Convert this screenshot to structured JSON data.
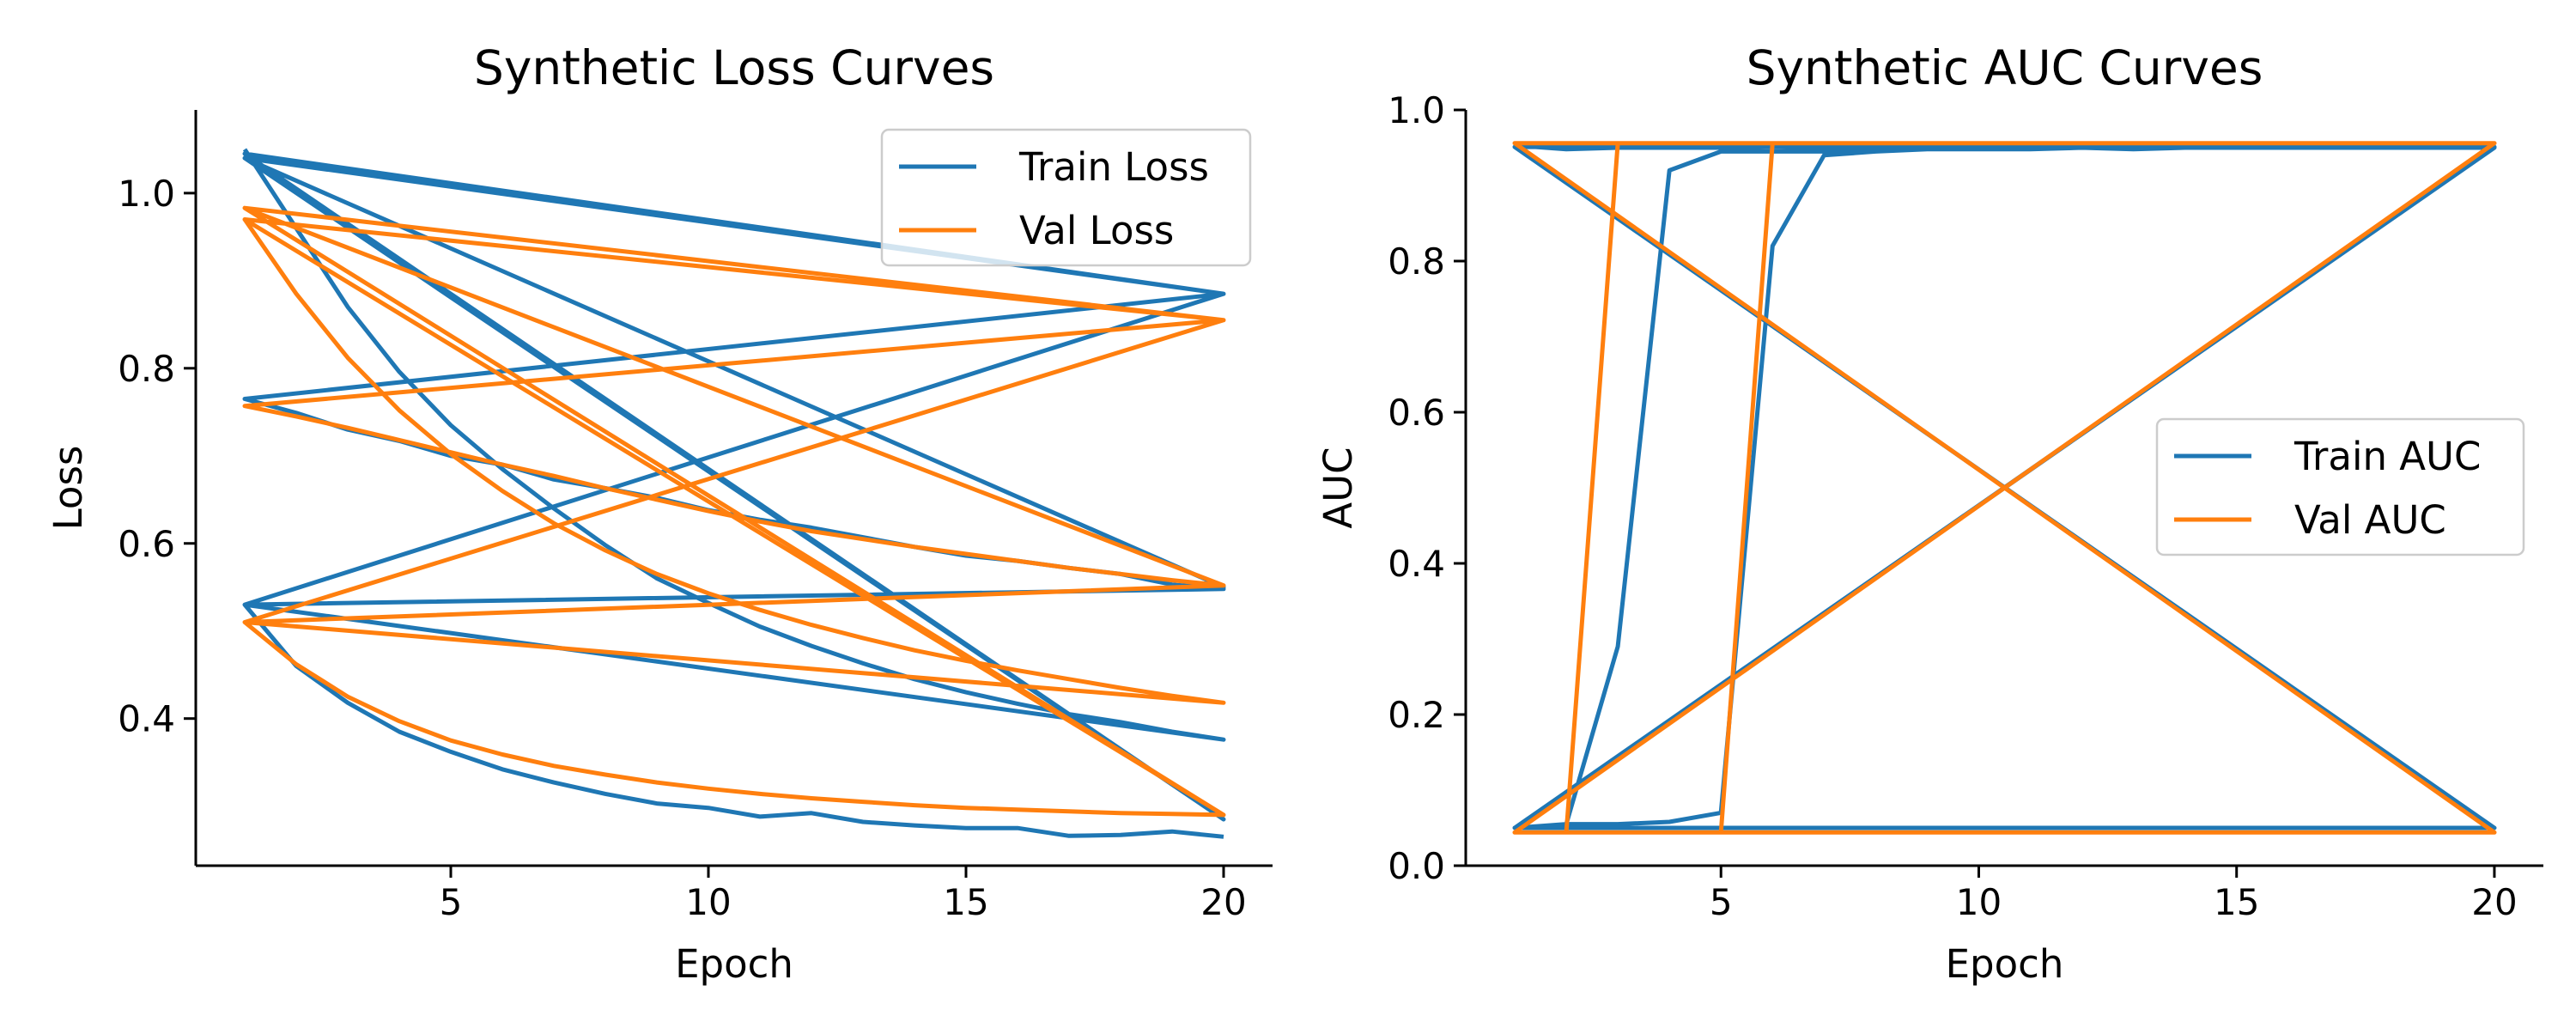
{
  "chart_data": [
    {
      "type": "line",
      "title": "Synthetic Loss Curves",
      "xlabel": "Epoch",
      "ylabel": "Loss",
      "xlim": [
        0.05,
        20.95
      ],
      "ylim": [
        0.232,
        1.095
      ],
      "xticks": [
        5,
        10,
        15,
        20
      ],
      "yticks": [
        0.4,
        0.6,
        0.8,
        1.0
      ],
      "xtick_labels": [
        "5",
        "10",
        "15",
        "20"
      ],
      "ytick_labels": [
        "0.4",
        "0.6",
        "0.8",
        "1.0"
      ],
      "grid": false,
      "legend": {
        "position": "top-right"
      },
      "colors": {
        "train": "#1f77b4",
        "val": "#ff7f0e"
      },
      "series": [
        {
          "name": "Train Loss",
          "color": "#1f77b4",
          "x": [
            1,
            2,
            3,
            4,
            5,
            6,
            7,
            8,
            9,
            10,
            11,
            12,
            13,
            14,
            15,
            16,
            17,
            18,
            19,
            20,
            1,
            20,
            1,
            20,
            1,
            20,
            1,
            20,
            1,
            2,
            3,
            4,
            5,
            6,
            7,
            8,
            9,
            10,
            11,
            12,
            13,
            14,
            15,
            16,
            17,
            18,
            19,
            20,
            1,
            2,
            3,
            4,
            5,
            6,
            7,
            8,
            9,
            10,
            11,
            12,
            13,
            14,
            15,
            16,
            17,
            18,
            19,
            20
          ],
          "y": [
            1.05,
            0.96,
            0.87,
            0.796,
            0.735,
            0.685,
            0.64,
            0.598,
            0.56,
            0.532,
            0.505,
            0.483,
            0.463,
            0.445,
            0.43,
            0.417,
            0.405,
            0.396,
            0.385,
            0.376,
            0.53,
            0.885,
            1.045,
            0.285,
            1.04,
            0.55,
            1.04,
            0.885,
            0.765,
            0.749,
            0.73,
            0.717,
            0.7,
            0.69,
            0.673,
            0.663,
            0.652,
            0.638,
            0.627,
            0.618,
            0.607,
            0.596,
            0.586,
            0.58,
            0.572,
            0.565,
            0.553,
            0.548,
            0.53,
            0.46,
            0.418,
            0.385,
            0.362,
            0.342,
            0.327,
            0.314,
            0.303,
            0.298,
            0.288,
            0.292,
            0.282,
            0.278,
            0.275,
            0.275,
            0.266,
            0.267,
            0.271,
            0.265
          ]
        },
        {
          "name": "Val Loss",
          "color": "#ff7f0e",
          "x": [
            1,
            2,
            3,
            4,
            5,
            6,
            7,
            8,
            9,
            10,
            11,
            12,
            13,
            14,
            15,
            16,
            17,
            18,
            19,
            20,
            1,
            20,
            1,
            20,
            1,
            20,
            1,
            20,
            1,
            2,
            3,
            4,
            5,
            6,
            7,
            8,
            9,
            10,
            11,
            12,
            13,
            14,
            15,
            16,
            17,
            18,
            19,
            20,
            1,
            2,
            3,
            4,
            5,
            6,
            7,
            8,
            9,
            10,
            11,
            12,
            13,
            14,
            15,
            16,
            17,
            18,
            19,
            20
          ],
          "y": [
            0.97,
            0.885,
            0.812,
            0.752,
            0.702,
            0.66,
            0.623,
            0.592,
            0.565,
            0.543,
            0.524,
            0.507,
            0.492,
            0.478,
            0.466,
            0.455,
            0.445,
            0.435,
            0.426,
            0.418,
            0.51,
            0.855,
            0.97,
            0.29,
            0.983,
            0.552,
            0.983,
            0.855,
            0.757,
            0.745,
            0.732,
            0.718,
            0.704,
            0.69,
            0.677,
            0.663,
            0.65,
            0.637,
            0.625,
            0.614,
            0.605,
            0.596,
            0.588,
            0.58,
            0.572,
            0.565,
            0.558,
            0.552,
            0.51,
            0.462,
            0.425,
            0.397,
            0.375,
            0.359,
            0.346,
            0.336,
            0.327,
            0.32,
            0.314,
            0.309,
            0.305,
            0.301,
            0.298,
            0.296,
            0.294,
            0.292,
            0.291,
            0.29
          ]
        }
      ]
    },
    {
      "type": "line",
      "title": "Synthetic AUC Curves",
      "xlabel": "Epoch",
      "ylabel": "AUC",
      "xlim": [
        0.05,
        20.95
      ],
      "ylim": [
        0.0,
        1.0
      ],
      "xticks": [
        5,
        10,
        15,
        20
      ],
      "yticks": [
        0.0,
        0.2,
        0.4,
        0.6,
        0.8,
        1.0
      ],
      "xtick_labels": [
        "5",
        "10",
        "15",
        "20"
      ],
      "ytick_labels": [
        "0.0",
        "0.2",
        "0.4",
        "0.6",
        "0.8",
        "1.0"
      ],
      "grid": false,
      "legend": {
        "position": "center-right"
      },
      "colors": {
        "train": "#1f77b4",
        "val": "#ff7f0e"
      },
      "series": [
        {
          "name": "Train AUC",
          "color": "#1f77b4",
          "x": [
            1,
            2,
            3,
            4,
            5,
            6,
            7,
            8,
            9,
            10,
            11,
            12,
            13,
            14,
            15,
            16,
            17,
            18,
            19,
            20,
            1,
            20,
            1,
            20,
            1,
            20,
            1,
            2,
            3,
            4,
            5,
            6,
            7,
            8,
            9,
            10,
            11,
            12,
            13,
            14,
            15,
            16,
            17,
            18,
            19,
            20,
            1,
            2,
            3,
            4,
            5,
            6,
            7,
            8,
            9,
            10,
            11,
            12,
            13,
            14,
            15,
            16,
            17,
            18,
            19,
            20
          ],
          "y": [
            0.953,
            0.948,
            0.95,
            0.95,
            0.95,
            0.951,
            0.95,
            0.951,
            0.951,
            0.951,
            0.95,
            0.951,
            0.951,
            0.951,
            0.951,
            0.951,
            0.951,
            0.951,
            0.951,
            0.951,
            0.951,
            0.05,
            0.05,
            0.951,
            0.05,
            0.05,
            0.05,
            0.055,
            0.29,
            0.92,
            0.945,
            0.945,
            0.945,
            0.948,
            0.95,
            0.95,
            0.948,
            0.95,
            0.948,
            0.95,
            0.95,
            0.95,
            0.95,
            0.95,
            0.95,
            0.95,
            0.05,
            0.055,
            0.055,
            0.058,
            0.07,
            0.82,
            0.94,
            0.945,
            0.948,
            0.948,
            0.948,
            0.95,
            0.948,
            0.95,
            0.95,
            0.95,
            0.95,
            0.95,
            0.95,
            0.95
          ]
        },
        {
          "name": "Val AUC",
          "color": "#ff7f0e",
          "x": [
            1,
            2,
            3,
            4,
            5,
            6,
            7,
            8,
            9,
            10,
            11,
            12,
            13,
            14,
            15,
            16,
            17,
            18,
            19,
            20,
            1,
            20,
            1,
            20,
            1,
            20,
            1,
            2,
            3,
            4,
            5,
            6,
            7,
            8,
            9,
            10,
            11,
            12,
            13,
            14,
            15,
            16,
            17,
            18,
            19,
            20,
            1,
            2,
            3,
            4,
            5,
            6,
            7,
            8,
            9,
            10,
            11,
            12,
            13,
            14,
            15,
            16,
            17,
            18,
            19,
            20
          ],
          "y": [
            0.956,
            0.956,
            0.956,
            0.956,
            0.956,
            0.956,
            0.956,
            0.956,
            0.956,
            0.956,
            0.956,
            0.956,
            0.956,
            0.956,
            0.956,
            0.956,
            0.956,
            0.956,
            0.956,
            0.956,
            0.956,
            0.044,
            0.044,
            0.956,
            0.044,
            0.044,
            0.044,
            0.044,
            0.956,
            0.956,
            0.956,
            0.956,
            0.956,
            0.956,
            0.956,
            0.956,
            0.956,
            0.956,
            0.956,
            0.956,
            0.956,
            0.956,
            0.956,
            0.956,
            0.956,
            0.956,
            0.044,
            0.044,
            0.044,
            0.044,
            0.044,
            0.956,
            0.956,
            0.956,
            0.956,
            0.956,
            0.956,
            0.956,
            0.956,
            0.956,
            0.956,
            0.956,
            0.956,
            0.956,
            0.956,
            0.956
          ]
        }
      ]
    }
  ]
}
